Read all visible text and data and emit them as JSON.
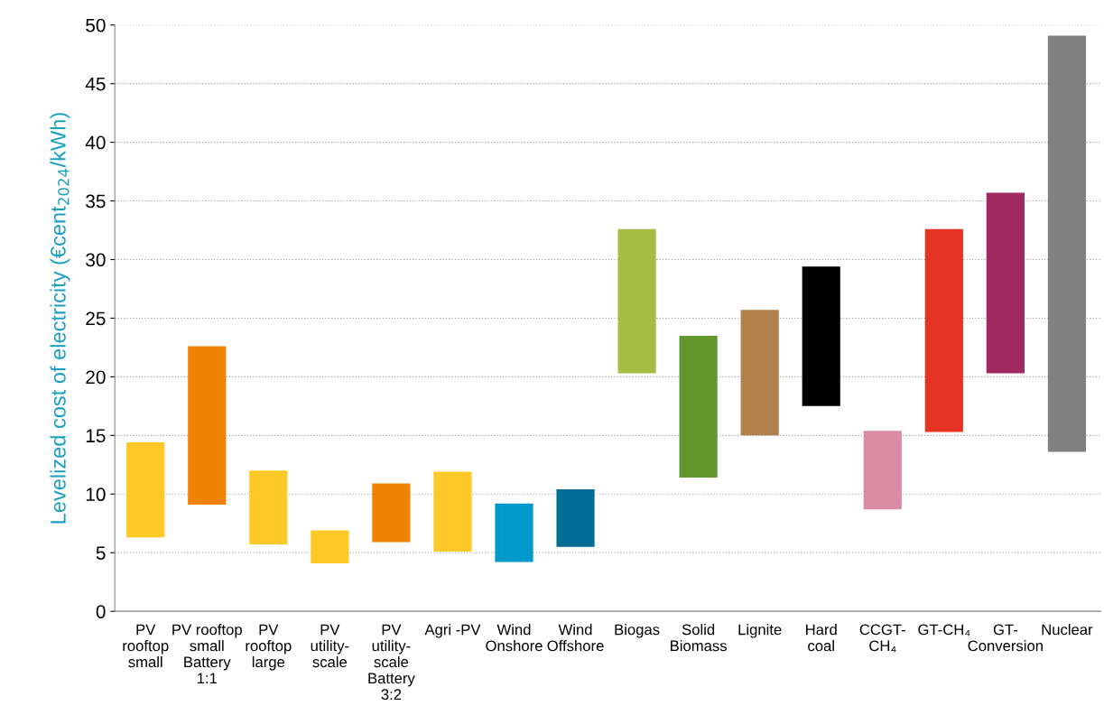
{
  "chart_data": {
    "type": "bar",
    "ylabel": "Levelized cost of electricity (€cent$_{2024}$/kWh)",
    "categories": [
      "PV\nrooftop\nsmall",
      "PV rooftop\nsmall\nBattery\n1:1",
      "PV\nrooftop\nlarge",
      "PV\nutility-\nscale",
      "PV\nutility-\nscale\nBattery\n3:2",
      "Agri -PV",
      "Wind\nOnshore",
      "Wind\nOffshore",
      "Biogas",
      "Solid\nBiomass",
      "Lignite",
      "Hard\ncoal",
      "CCGT-\nCH₄",
      "GT-CH₄",
      "GT-\nConversion",
      "Nuclear"
    ],
    "base": [
      6.3,
      9.1,
      5.7,
      4.1,
      5.9,
      5.1,
      4.2,
      5.5,
      20.3,
      11.4,
      15.0,
      17.5,
      8.7,
      15.3,
      20.3,
      13.6
    ],
    "values": [
      8.1,
      13.5,
      6.3,
      2.8,
      5.0,
      6.8,
      5.0,
      4.9,
      12.3,
      12.1,
      10.7,
      11.9,
      6.7,
      17.3,
      15.4,
      35.5
    ],
    "colors": [
      "#fdc926",
      "#ef8200",
      "#fdc926",
      "#fdc926",
      "#ef8200",
      "#fdc926",
      "#0099cc",
      "#006e94",
      "#a5bd43",
      "#64962e",
      "#b1804b",
      "#000000",
      "#d88ba3",
      "#e53324",
      "#a0295f",
      "#808080"
    ],
    "ylim": [
      0,
      50
    ],
    "yticks": [
      0,
      5,
      10,
      15,
      20,
      25,
      30,
      35,
      40,
      45,
      50
    ],
    "grid": "y"
  }
}
